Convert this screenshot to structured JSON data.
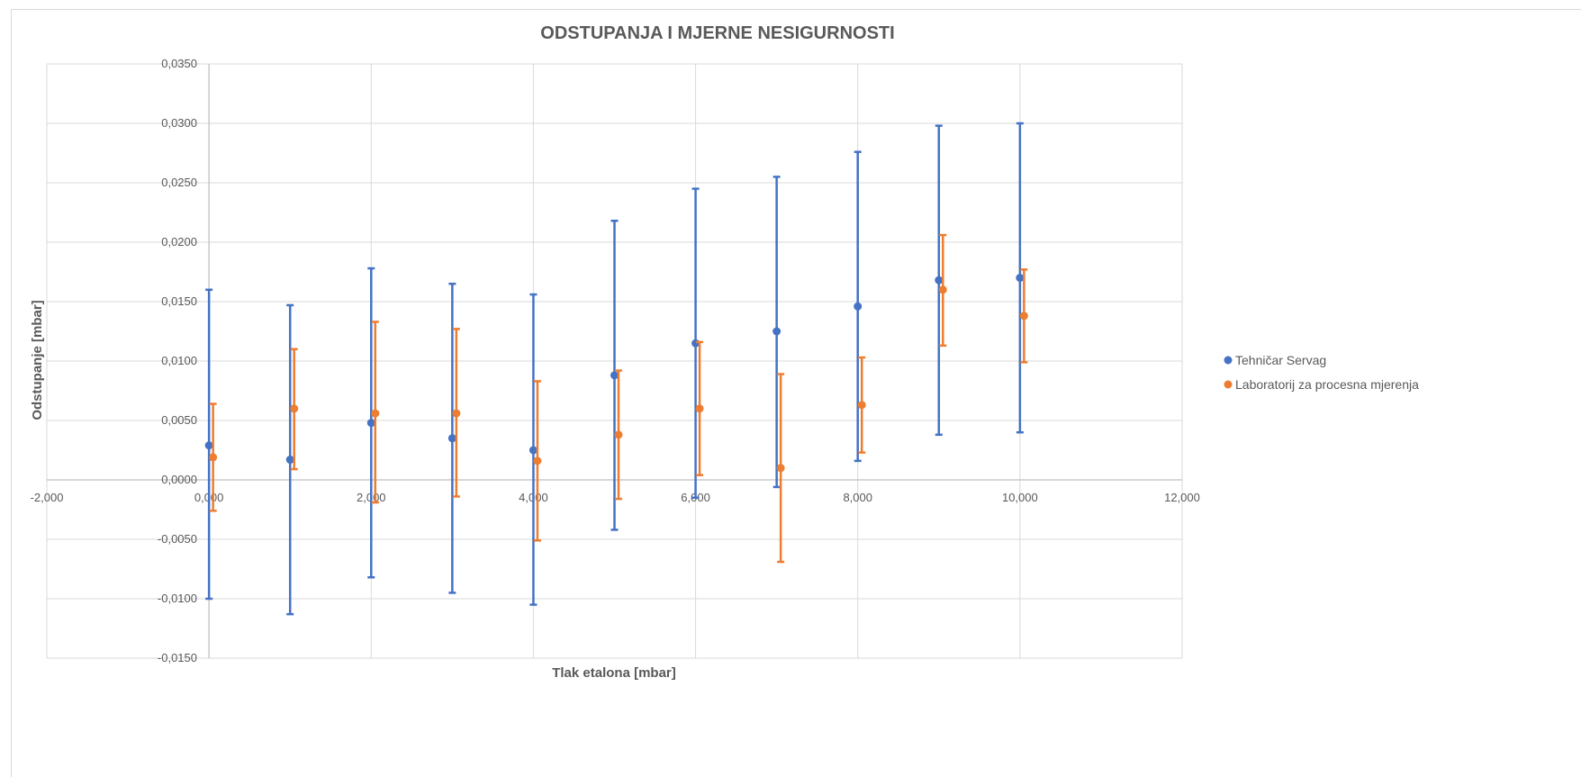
{
  "chart_data": {
    "type": "scatter",
    "title": "ODSTUPANJA I MJERNE NESIGURNOSTI",
    "xlabel": "Tlak etalona [mbar]",
    "ylabel": "Odstupanje [mbar]",
    "xlim": [
      -2,
      12
    ],
    "ylim": [
      -0.015,
      0.035
    ],
    "x_ticks": [
      "-2,000",
      "0,000",
      "2,000",
      "4,000",
      "6,000",
      "8,000",
      "10,000",
      "12,000"
    ],
    "y_ticks": [
      "0,0350",
      "0,0300",
      "0,0250",
      "0,0200",
      "0,0150",
      "0,0100",
      "0,0050",
      "0,0000",
      "-0,0050",
      "-0,0100",
      "-0,0150"
    ],
    "grid": true,
    "legend_position": "right",
    "series": [
      {
        "name": "Tehničar Servag",
        "color": "#4472C4",
        "points": [
          {
            "x": 0,
            "y": 0.0029,
            "low": -0.01,
            "high": 0.016
          },
          {
            "x": 1,
            "y": 0.0017,
            "low": -0.0113,
            "high": 0.0147
          },
          {
            "x": 2,
            "y": 0.0048,
            "low": -0.0082,
            "high": 0.0178
          },
          {
            "x": 3,
            "y": 0.0035,
            "low": -0.0095,
            "high": 0.0165
          },
          {
            "x": 4,
            "y": 0.0025,
            "low": -0.0105,
            "high": 0.0156
          },
          {
            "x": 5,
            "y": 0.0088,
            "low": -0.0042,
            "high": 0.0218
          },
          {
            "x": 6,
            "y": 0.0115,
            "low": -0.0015,
            "high": 0.0245
          },
          {
            "x": 7,
            "y": 0.0125,
            "low": -0.0006,
            "high": 0.0255
          },
          {
            "x": 8,
            "y": 0.0146,
            "low": 0.0016,
            "high": 0.0276
          },
          {
            "x": 9,
            "y": 0.0168,
            "low": 0.0038,
            "high": 0.0298
          },
          {
            "x": 10,
            "y": 0.017,
            "low": 0.004,
            "high": 0.03
          }
        ]
      },
      {
        "name": "Laboratorij za procesna mjerenja",
        "color": "#ED7D31",
        "points": [
          {
            "x": 0.05,
            "y": 0.0019,
            "low": -0.0026,
            "high": 0.0064
          },
          {
            "x": 1.05,
            "y": 0.006,
            "low": 0.0009,
            "high": 0.011
          },
          {
            "x": 2.05,
            "y": 0.0056,
            "low": -0.0019,
            "high": 0.0133
          },
          {
            "x": 3.05,
            "y": 0.0056,
            "low": -0.0014,
            "high": 0.0127
          },
          {
            "x": 4.05,
            "y": 0.0016,
            "low": -0.0051,
            "high": 0.0083
          },
          {
            "x": 5.05,
            "y": 0.0038,
            "low": -0.0016,
            "high": 0.0092
          },
          {
            "x": 6.05,
            "y": 0.006,
            "low": 0.0004,
            "high": 0.0116
          },
          {
            "x": 7.05,
            "y": 0.001,
            "low": -0.0069,
            "high": 0.0089
          },
          {
            "x": 8.05,
            "y": 0.0063,
            "low": 0.0023,
            "high": 0.0103
          },
          {
            "x": 9.05,
            "y": 0.016,
            "low": 0.0113,
            "high": 0.0206
          },
          {
            "x": 10.05,
            "y": 0.0138,
            "low": 0.0099,
            "high": 0.0177
          }
        ]
      }
    ]
  }
}
